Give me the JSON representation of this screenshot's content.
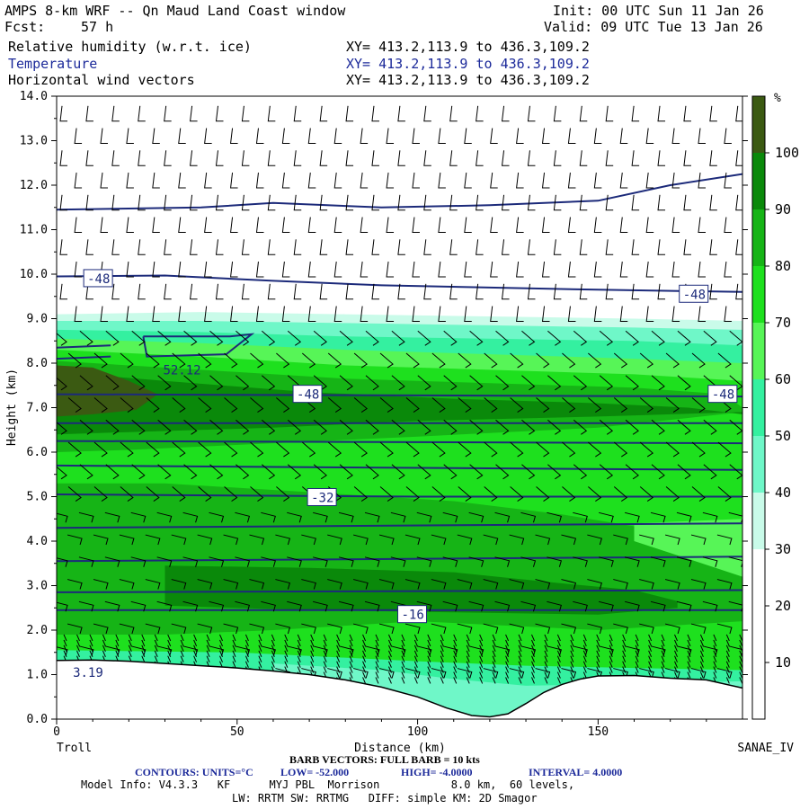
{
  "header": {
    "title": "AMPS 8-km WRF -- Qn Maud Land Coast window",
    "init": "Init: 00 UTC Sun 11 Jan 26",
    "fcst_label": "Fcst:",
    "fcst_value": "57 h",
    "valid": "Valid: 09 UTC Tue 13 Jan 26",
    "fields": [
      {
        "name": "Relative humidity (w.r.t. ice)",
        "xy": "XY= 413.2,113.9 to 436.3,109.2"
      },
      {
        "name": "Temperature",
        "xy": "XY= 413.2,113.9 to 436.3,109.2"
      },
      {
        "name": "Horizontal wind vectors",
        "xy": "XY= 413.2,113.9 to 436.3,109.2"
      }
    ]
  },
  "chart_data": {
    "type": "heatmap",
    "xlabel": "Distance (km)",
    "ylabel": "Height (km)",
    "xlim": [
      0,
      190
    ],
    "ylim": [
      0,
      14
    ],
    "x_ticks": [
      "0",
      "50",
      "100",
      "150"
    ],
    "x_tick_values": [
      0,
      50,
      100,
      150
    ],
    "y_ticks": [
      "0.0",
      "1.0",
      "2.0",
      "3.0",
      "4.0",
      "5.0",
      "6.0",
      "7.0",
      "8.0",
      "9.0",
      "10.0",
      "11.0",
      "12.0",
      "13.0",
      "14.0"
    ],
    "left_endpoint": "Troll",
    "right_endpoint": "SANAE_IV",
    "colorbar": {
      "unit": "%",
      "levels": [
        "10",
        "20",
        "30",
        "40",
        "50",
        "60",
        "70",
        "80",
        "90",
        "100"
      ],
      "colors": [
        "#ffffff",
        "#ffffff",
        "#ffffff",
        "#c9fbe9",
        "#6ff7c8",
        "#34f0a0",
        "#57f557",
        "#1ee01e",
        "#16b416",
        "#0a890a",
        "#3b5a12"
      ]
    },
    "terrain_profile": {
      "x": [
        0,
        10,
        20,
        30,
        40,
        50,
        60,
        70,
        80,
        90,
        100,
        108,
        115,
        120,
        125,
        130,
        135,
        140,
        145,
        150,
        160,
        170,
        180,
        190
      ],
      "y": [
        1.32,
        1.33,
        1.3,
        1.25,
        1.2,
        1.15,
        1.08,
        1.0,
        0.88,
        0.72,
        0.5,
        0.25,
        0.08,
        0.05,
        0.12,
        0.35,
        0.6,
        0.78,
        0.9,
        0.97,
        0.98,
        0.92,
        0.88,
        0.7
      ]
    },
    "temperature_contours": {
      "units": "°C",
      "low": "-52.000",
      "high": "-4.0000",
      "interval": "4.0000",
      "lines": [
        {
          "level": -16,
          "points": [
            [
              0,
              2.45
            ],
            [
              190,
              2.45
            ]
          ]
        },
        {
          "level": -20,
          "points": [
            [
              0,
              2.85
            ],
            [
              190,
              2.9
            ]
          ]
        },
        {
          "level": -24,
          "points": [
            [
              0,
              3.55
            ],
            [
              190,
              3.65
            ]
          ]
        },
        {
          "level": -28,
          "points": [
            [
              0,
              4.3
            ],
            [
              190,
              4.4
            ]
          ]
        },
        {
          "level": -32,
          "points": [
            [
              0,
              5.05
            ],
            [
              100,
              5.0
            ],
            [
              190,
              5.0
            ]
          ]
        },
        {
          "level": -36,
          "points": [
            [
              0,
              5.7
            ],
            [
              190,
              5.6
            ]
          ]
        },
        {
          "level": -40,
          "points": [
            [
              0,
              6.25
            ],
            [
              190,
              6.2
            ]
          ]
        },
        {
          "level": -44,
          "points": [
            [
              0,
              6.65
            ],
            [
              190,
              6.65
            ]
          ]
        },
        {
          "level": -48,
          "points": [
            [
              0,
              7.3
            ],
            [
              190,
              7.25
            ]
          ]
        },
        {
          "level": -48,
          "points": [
            [
              0,
              9.95
            ],
            [
              30,
              9.97
            ],
            [
              60,
              9.85
            ],
            [
              90,
              9.75
            ],
            [
              120,
              9.7
            ],
            [
              150,
              9.65
            ],
            [
              190,
              9.6
            ]
          ]
        },
        {
          "level": -52,
          "points": [
            [
              0,
              8.1
            ],
            [
              15,
              8.15
            ]
          ]
        },
        {
          "level": -52,
          "points": [
            [
              0,
              8.35
            ],
            [
              15,
              8.4
            ]
          ]
        },
        {
          "level": -48,
          "points": [
            [
              0,
              11.45
            ],
            [
              40,
              11.5
            ],
            [
              60,
              11.6
            ],
            [
              90,
              11.5
            ],
            [
              120,
              11.55
            ],
            [
              150,
              11.65
            ],
            [
              170,
              12.0
            ],
            [
              190,
              12.25
            ]
          ]
        }
      ],
      "labels": [
        {
          "text": "-48",
          "x": 8,
          "y": 9.9
        },
        {
          "text": "-48",
          "x": 173,
          "y": 9.55
        },
        {
          "text": "-48",
          "x": 66,
          "y": 7.3
        },
        {
          "text": "-48",
          "x": 181,
          "y": 7.3
        },
        {
          "text": "-32",
          "x": 70,
          "y": 4.98
        },
        {
          "text": "-16",
          "x": 95,
          "y": 2.35
        },
        {
          "text": "52.12",
          "x": 29,
          "y": 7.85
        },
        {
          "text": "3.19",
          "x": 4,
          "y": 1.05
        }
      ],
      "cold_pocket": [
        [
          24,
          8.6
        ],
        [
          48,
          8.6
        ],
        [
          54,
          8.65
        ],
        [
          47,
          8.2
        ],
        [
          25,
          8.15
        ],
        [
          24,
          8.6
        ]
      ]
    },
    "footer": {
      "barb_vectors": "BARB VECTORS: FULL BARB = 10 kts",
      "contours_label": "CONTOURS: UNITS=°C",
      "low_label": "LOW= -52.000",
      "high_label": "HIGH= -4.0000",
      "interval_label": "INTERVAL= 4.0000",
      "model_info_1": "Model Info: V4.3.3   KF      MYJ PBL  Morrison           8.0 km,  60 levels,",
      "model_info_2": "LW: RRTM SW: RRTMG   DIFF: simple KM: 2D Smagor"
    }
  }
}
